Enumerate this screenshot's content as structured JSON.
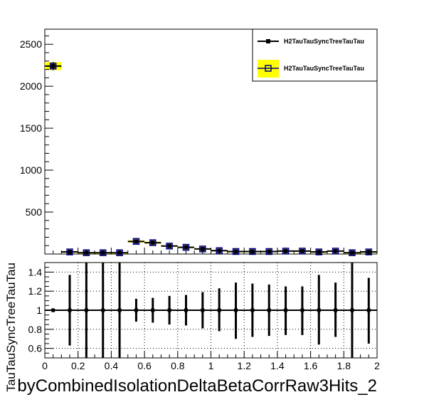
{
  "chart_data": [
    {
      "type": "line",
      "panel": "main",
      "xlim": [
        0,
        2
      ],
      "ylim": [
        0,
        2680
      ],
      "yticks": [
        500,
        1000,
        1500,
        2000,
        2500
      ],
      "ytick_labels": [
        "500",
        "1000",
        "1500",
        "2000",
        "2500"
      ],
      "bin_width": 0.1,
      "x": [
        0.05,
        0.15,
        0.25,
        0.35,
        0.45,
        0.55,
        0.65,
        0.75,
        0.85,
        0.95,
        1.05,
        1.15,
        1.25,
        1.35,
        1.45,
        1.55,
        1.65,
        1.75,
        1.85,
        1.95
      ],
      "series": [
        {
          "name": "H2TauTauSyncTreeTauTau",
          "style": "markers-with-error-bars",
          "color": "#000000",
          "values": [
            2240,
            25,
            15,
            15,
            15,
            150,
            135,
            95,
            80,
            60,
            40,
            30,
            30,
            30,
            35,
            35,
            25,
            35,
            15,
            25
          ]
        },
        {
          "name": "H2TauTauSyncTreeTauTau",
          "style": "open-squares-with-yellow-band",
          "color": "#000080",
          "band_color": "#ffff00",
          "values": [
            2240,
            25,
            15,
            15,
            15,
            150,
            135,
            95,
            80,
            60,
            40,
            30,
            30,
            30,
            35,
            35,
            25,
            35,
            15,
            25
          ]
        }
      ],
      "legend_position": "top-right"
    },
    {
      "type": "scatter",
      "panel": "ratio",
      "xlim": [
        0,
        2
      ],
      "ylim": [
        0.5,
        1.5
      ],
      "xticks": [
        0,
        0.2,
        0.4,
        0.6,
        0.8,
        1,
        1.2,
        1.4,
        1.6,
        1.8,
        2
      ],
      "xtick_labels": [
        "0",
        "0.2",
        "0.4",
        "0.6",
        "0.8",
        "1",
        "1.2",
        "1.4",
        "1.6",
        "1.8",
        "2"
      ],
      "yticks": [
        0.6,
        0.8,
        1,
        1.2,
        1.4
      ],
      "ytick_labels": [
        "0.6",
        "0.8",
        "1",
        "1.2",
        "1.4"
      ],
      "grid": true,
      "x": [
        0.05,
        0.15,
        0.25,
        0.35,
        0.45,
        0.55,
        0.65,
        0.75,
        0.85,
        0.95,
        1.05,
        1.15,
        1.25,
        1.35,
        1.45,
        1.55,
        1.65,
        1.75,
        1.85,
        1.95
      ],
      "values": [
        1,
        1,
        1,
        1,
        1,
        1,
        1,
        1,
        1,
        1,
        1,
        1,
        1,
        1,
        1,
        1,
        1,
        1,
        1,
        1
      ],
      "err_low": [
        0.02,
        0.37,
        0.55,
        0.55,
        0.55,
        0.12,
        0.13,
        0.15,
        0.16,
        0.19,
        0.22,
        0.3,
        0.28,
        0.27,
        0.26,
        0.26,
        0.36,
        0.28,
        0.55,
        0.35
      ],
      "err_high": [
        0.02,
        0.37,
        0.55,
        0.55,
        0.55,
        0.12,
        0.13,
        0.15,
        0.16,
        0.19,
        0.23,
        0.29,
        0.28,
        0.27,
        0.25,
        0.25,
        0.37,
        0.29,
        0.55,
        0.34
      ],
      "xlabel": "byCombinedIsolationDeltaBetaCorrRaw3Hits_2",
      "ylabel": "TauTauSyncTreeTauTau"
    }
  ]
}
